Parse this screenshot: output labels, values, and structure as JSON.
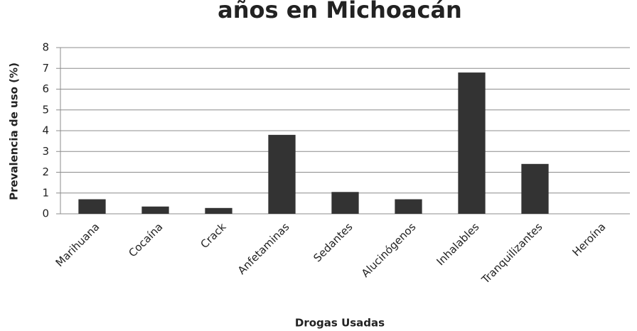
{
  "chart_data": {
    "type": "bar",
    "title": "años en Michoacán",
    "x_label": "Drogas Usadas",
    "y_label": "Prevalencia de uso (%)",
    "categories": [
      "Marihuana",
      "Cocaína",
      "Crack",
      "Anfetaminas",
      "Sedantes",
      "Alucinógenos",
      "Inhalables",
      "Tranquilizantes",
      "Heroína"
    ],
    "values": [
      0.7,
      0.35,
      0.28,
      3.8,
      1.05,
      0.7,
      6.8,
      2.4,
      0
    ],
    "color": "#333333",
    "ylim": [
      0,
      8
    ],
    "yticks": [
      0,
      1,
      2,
      3,
      4,
      5,
      6,
      7,
      8
    ],
    "grid": true
  }
}
